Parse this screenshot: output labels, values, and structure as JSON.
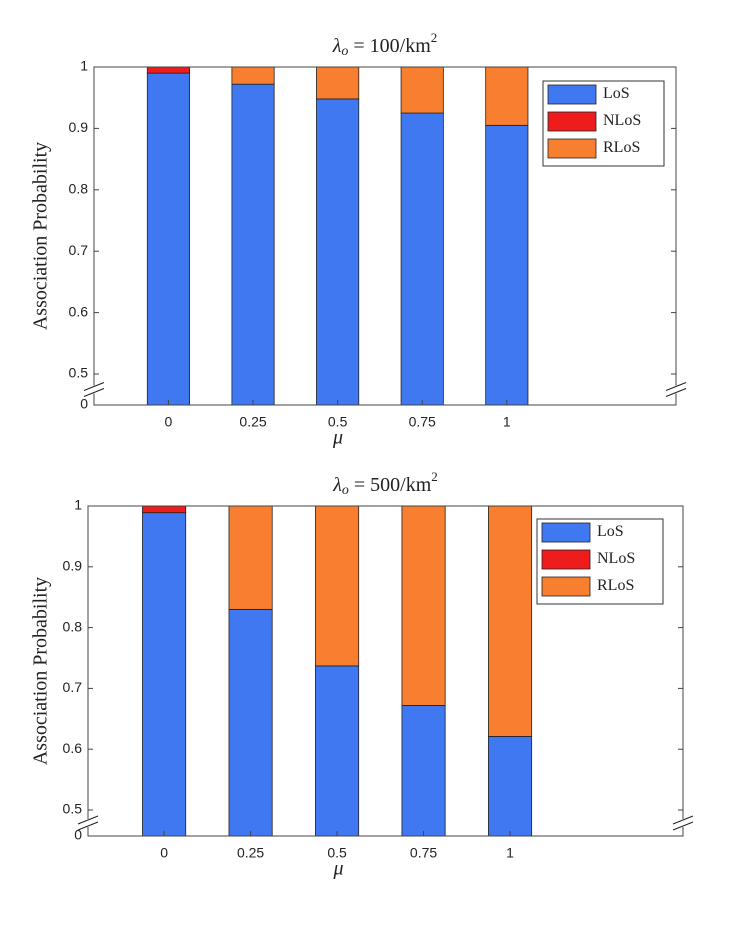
{
  "chart_data": [
    {
      "type": "stacked_bar",
      "title": {
        "symbol": "λ",
        "subscript": "o",
        "text": " = 100/km",
        "superscript": "2"
      },
      "x_label": "μ",
      "y_label": "Association Probability",
      "x": [
        0,
        0.25,
        0.5,
        0.75,
        1
      ],
      "xticks": [
        0,
        0.25,
        0.5,
        0.75,
        1
      ],
      "xlim": [
        -0.22,
        1.5
      ],
      "ylim": [
        0,
        1
      ],
      "yticks": [
        0,
        0.5,
        0.6,
        0.7,
        0.8,
        0.9,
        1
      ],
      "axis_break": [
        0,
        0.5
      ],
      "legend": "upper right",
      "series": [
        {
          "name": "LoS",
          "color": "#3f78f0",
          "values": [
            0.99,
            0.972,
            0.948,
            0.925,
            0.905
          ]
        },
        {
          "name": "NLoS",
          "color": "#ee1c1c",
          "values": [
            0.01,
            0,
            0,
            0,
            0
          ]
        },
        {
          "name": "RLoS",
          "color": "#f77f2f",
          "values": [
            0,
            0.028,
            0.052,
            0.075,
            0.095
          ]
        }
      ]
    },
    {
      "type": "stacked_bar",
      "title": {
        "symbol": "λ",
        "subscript": "o",
        "text": " = 500/km",
        "superscript": "2"
      },
      "x_label": "μ",
      "y_label": "Association Probability",
      "x": [
        0,
        0.25,
        0.5,
        0.75,
        1
      ],
      "xticks": [
        0,
        0.25,
        0.5,
        0.75,
        1
      ],
      "xlim": [
        -0.22,
        1.5
      ],
      "ylim": [
        0,
        1
      ],
      "yticks": [
        0,
        0.5,
        0.6,
        0.7,
        0.8,
        0.9,
        1
      ],
      "axis_break": [
        0,
        0.5
      ],
      "legend": "upper right",
      "series": [
        {
          "name": "LoS",
          "color": "#3f78f0",
          "values": [
            0.989,
            0.83,
            0.737,
            0.672,
            0.621
          ]
        },
        {
          "name": "NLoS",
          "color": "#ee1c1c",
          "values": [
            0.011,
            0,
            0,
            0,
            0
          ]
        },
        {
          "name": "RLoS",
          "color": "#f77f2f",
          "values": [
            0,
            0.17,
            0.263,
            0.328,
            0.379
          ]
        }
      ]
    }
  ]
}
